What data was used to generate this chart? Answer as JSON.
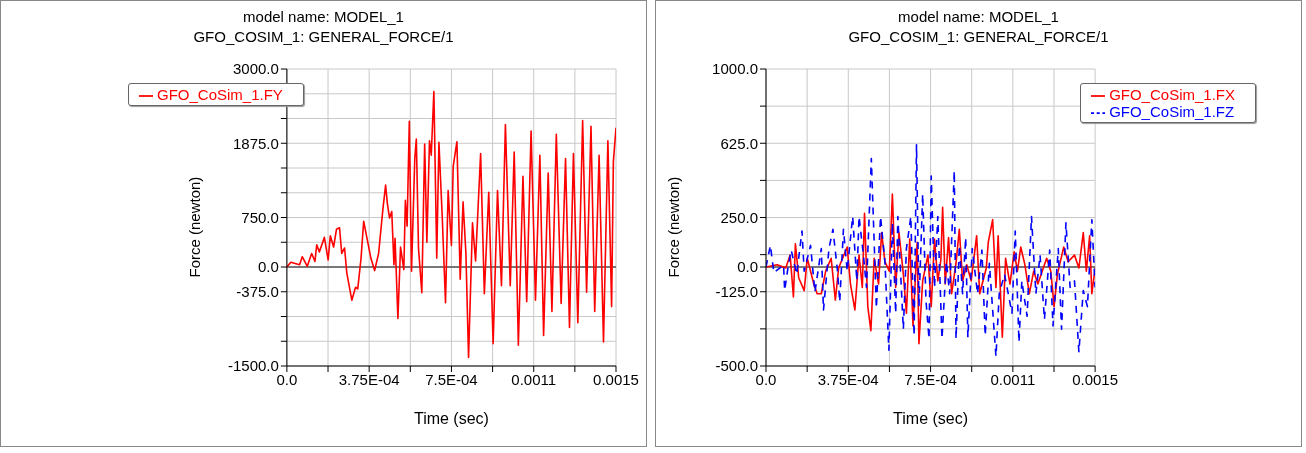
{
  "chart_data": [
    {
      "type": "line",
      "title": "model name: MODEL_1",
      "subtitle": "GFO_COSIM_1: GENERAL_FORCE/1",
      "xlabel": "Time (sec)",
      "ylabel": "Force (newton)",
      "xlim": [
        0,
        0.0015
      ],
      "xticks": [
        {
          "value": 0,
          "label": "0.0"
        },
        {
          "value": 0.0001875,
          "label": null
        },
        {
          "value": 0.000375,
          "label": "3.75E-04"
        },
        {
          "value": 0.0005625,
          "label": null
        },
        {
          "value": 0.00075,
          "label": "7.5E-04"
        },
        {
          "value": 0.0009375,
          "label": null
        },
        {
          "value": 0.001125,
          "label": "0.0011"
        },
        {
          "value": 0.0013125,
          "label": null
        },
        {
          "value": 0.0015,
          "label": "0.0015"
        }
      ],
      "ylim": [
        -1500,
        3000
      ],
      "yticks": [
        {
          "value": -1500,
          "label": "-1500.0"
        },
        {
          "value": -1125,
          "label": null
        },
        {
          "value": -750,
          "label": null
        },
        {
          "value": -375,
          "label": "-375.0"
        },
        {
          "value": 0,
          "label": "0.0"
        },
        {
          "value": 375,
          "label": null
        },
        {
          "value": 750,
          "label": "750.0"
        },
        {
          "value": 1125,
          "label": null
        },
        {
          "value": 1500,
          "label": null
        },
        {
          "value": 1875,
          "label": "1875.0"
        },
        {
          "value": 2250,
          "label": null
        },
        {
          "value": 2625,
          "label": null
        },
        {
          "value": 3000,
          "label": "3000.0"
        }
      ],
      "grid": true,
      "legend": "top left",
      "marker": "none",
      "ref_lines": [
        {
          "axis": "y",
          "value": 0,
          "color": "#555555"
        }
      ],
      "series": [
        {
          "name": "GFO_CoSim_1.FY",
          "color": "#ff0000",
          "line_style": "solid",
          "x": [
            0,
            1.8e-05,
            5.8e-05,
            7e-05,
            9.3e-05,
            0.000113,
            0.000128,
            0.000136,
            0.000148,
            0.000171,
            0.000188,
            0.000198,
            0.000213,
            0.000226,
            0.00024,
            0.00025,
            0.000263,
            0.000273,
            0.000296,
            0.000313,
            0.000323,
            0.000338,
            0.00035,
            0.000363,
            0.000383,
            0.0004,
            0.000418,
            0.000438,
            0.00045,
            0.000458,
            0.000468,
            0.000478,
            0.000488,
            0.000493,
            0.000506,
            0.000518,
            0.000533,
            0.00054,
            0.000548,
            0.000558,
            0.000568,
            0.000583,
            0.00059,
            0.0006,
            0.000615,
            0.000628,
            0.000638,
            0.00065,
            0.000658,
            0.00067,
            0.000683,
            0.000693,
            0.000708,
            0.000723,
            0.000735,
            0.00075,
            0.000758,
            0.000775,
            0.00079,
            0.000803,
            0.000816,
            0.000828,
            0.000846,
            0.00086,
            0.000883,
            0.0009,
            0.00092,
            0.00094,
            0.00096,
            0.000978,
            0.000996,
            0.001018,
            0.001036,
            0.001055,
            0.001076,
            0.001093,
            0.001113,
            0.001133,
            0.001153,
            0.00117,
            0.001191,
            0.001208,
            0.001228,
            0.00125,
            0.00127,
            0.001288,
            0.001306,
            0.001326,
            0.001348,
            0.001366,
            0.001386,
            0.001403,
            0.001423,
            0.001443,
            0.001463,
            0.00148,
            0.001488,
            0.0015
          ],
          "values": [
            0,
            73,
            34,
            156,
            10,
            205,
            83,
            337,
            229,
            449,
            107,
            473,
            303,
            571,
            595,
            205,
            288,
            -88,
            -503,
            -307,
            -332,
            132,
            693,
            473,
            132,
            -54,
            205,
            888,
            1240,
            961,
            742,
            839,
            34,
            434,
            -781,
            303,
            -39,
            1010,
            620,
            2206,
            -63,
            1645,
            1937,
            278,
            -390,
            1864,
            376,
            1913,
            1693,
            2660,
            132,
            1889,
            766,
            -542,
            1157,
            327,
            1523,
            1898,
            -185,
            986,
            205,
            -1371,
            669,
            93,
            1718,
            -405,
            1132,
            -1161,
            1157,
            -283,
            2157,
            -283,
            1742,
            -1186,
            1376,
            -527,
            2059,
            -503,
            1693,
            -1039,
            1425,
            -673,
            2011,
            -551,
            1645,
            -917,
            1718,
            -844,
            2220,
            -381,
            2133,
            -673,
            1693,
            -1137,
            1913,
            -600,
            1596,
            2108
          ]
        }
      ]
    },
    {
      "type": "line",
      "title": "model name: MODEL_1",
      "subtitle": "GFO_COSIM_1: GENERAL_FORCE/1",
      "xlabel": "Time (sec)",
      "ylabel": "Force (newton)",
      "xlim": [
        0,
        0.0015
      ],
      "xticks": [
        {
          "value": 0,
          "label": "0.0"
        },
        {
          "value": 0.0001875,
          "label": null
        },
        {
          "value": 0.000375,
          "label": "3.75E-04"
        },
        {
          "value": 0.0005625,
          "label": null
        },
        {
          "value": 0.00075,
          "label": "7.5E-04"
        },
        {
          "value": 0.0009375,
          "label": null
        },
        {
          "value": 0.001125,
          "label": "0.0011"
        },
        {
          "value": 0.0013125,
          "label": null
        },
        {
          "value": 0.0015,
          "label": "0.0015"
        }
      ],
      "ylim": [
        -500,
        1000
      ],
      "yticks": [
        {
          "value": -500,
          "label": "-500.0"
        },
        {
          "value": -312.5,
          "label": null
        },
        {
          "value": -125,
          "label": "-125.0"
        },
        {
          "value": 0,
          "label": "0.0"
        },
        {
          "value": 62.5,
          "label": null
        },
        {
          "value": 250,
          "label": "250.0"
        },
        {
          "value": 437.5,
          "label": null
        },
        {
          "value": 625,
          "label": "625.0"
        },
        {
          "value": 812.5,
          "label": null
        },
        {
          "value": 1000,
          "label": "1000.0"
        }
      ],
      "grid": true,
      "legend": "top right",
      "marker": "none",
      "ref_lines": [
        {
          "axis": "y",
          "value": 0,
          "color": "#555555"
        }
      ],
      "series": [
        {
          "name": "GFO_CoSim_1.FX",
          "color": "#ff0000",
          "line_style": "solid",
          "x": [
            0,
            5.1e-05,
            9e-05,
            0.00011,
            0.000125,
            0.000134,
            0.000149,
            0.000174,
            0.000188,
            0.000218,
            0.000233,
            0.000252,
            0.000272,
            0.000297,
            0.000316,
            0.000331,
            0.00037,
            0.000385,
            0.000405,
            0.000424,
            0.000439,
            0.000449,
            0.000464,
            0.000478,
            0.000493,
            0.000513,
            0.000527,
            0.000542,
            0.000562,
            0.000576,
            0.000591,
            0.000606,
            0.000626,
            0.00064,
            0.000655,
            0.00067,
            0.000689,
            0.000697,
            0.000714,
            0.000738,
            0.000753,
            0.000768,
            0.000783,
            0.000797,
            0.000805,
            0.000817,
            0.000832,
            0.000846,
            0.000866,
            0.000881,
            0.000896,
            0.000915,
            0.000935,
            0.00096,
            0.000974,
            0.001004,
            0.001013,
            0.001033,
            0.001048,
            0.001058,
            0.001077,
            0.001092,
            0.001112,
            0.001131,
            0.001146,
            0.001161,
            0.00118,
            0.0012,
            0.00122,
            0.001239,
            0.001259,
            0.001279,
            0.001298,
            0.001313,
            0.001328,
            0.001357,
            0.001377,
            0.001406,
            0.001426,
            0.001446,
            0.00146,
            0.001475,
            0.001485,
            0.0015
          ],
          "values": [
            0,
            11,
            -5,
            60,
            -151,
            117,
            -54,
            -119,
            44,
            -86,
            -135,
            -135,
            -21,
            44,
            -167,
            -5,
            101,
            -86,
            -217,
            60,
            -103,
            271,
            -200,
            -322,
            44,
            -86,
            174,
            27,
            -21,
            369,
            -103,
            174,
            -37,
            -233,
            141,
            -298,
            125,
            -387,
            -70,
            60,
            -200,
            141,
            -70,
            36,
            301,
            -86,
            149,
            -135,
            19,
            190,
            -70,
            11,
            -70,
            158,
            -135,
            -5,
            125,
            239,
            -103,
            158,
            -355,
            44,
            -86,
            77,
            -21,
            101,
            11,
            -135,
            -21,
            -86,
            -21,
            44,
            -21,
            -200,
            -37,
            101,
            27,
            60,
            -5,
            174,
            -21,
            158,
            -135,
            -5
          ]
        },
        {
          "name": "GFO_CoSim_1.FZ",
          "color": "#0000ff",
          "line_style": "dashed",
          "x": [
            0,
            2e-05,
            3.6e-05,
            8e-05,
            8.5e-05,
            0.0001,
            0.000115,
            0.00014,
            0.000164,
            0.000174,
            0.000203,
            0.000223,
            0.000252,
            0.000262,
            0.000287,
            0.000305,
            0.000326,
            0.000336,
            0.000353,
            0.00037,
            0.000395,
            0.000414,
            0.000424,
            0.000444,
            0.000458,
            0.00048,
            0.000493,
            0.000503,
            0.000522,
            0.000542,
            0.00056,
            0.000576,
            0.000591,
            0.000601,
            0.000626,
            0.00064,
            0.00066,
            0.000675,
            0.000686,
            0.000697,
            0.000714,
            0.000729,
            0.000743,
            0.000753,
            0.000768,
            0.000783,
            0.000802,
            0.000822,
            0.000837,
            0.000858,
            0.000866,
            0.000881,
            0.000896,
            0.00091,
            0.00092,
            0.00094,
            0.000964,
            0.000984,
            0.000999,
            0.001018,
            0.001048,
            0.001063,
            0.001087,
            0.001121,
            0.001136,
            0.001153,
            0.001166,
            0.00119,
            0.00121,
            0.00123,
            0.001249,
            0.001269,
            0.001293,
            0.001308,
            0.001332,
            0.001347,
            0.001367,
            0.001386,
            0.001406,
            0.001426,
            0.001446,
            0.001465,
            0.001485,
            0.0015
          ],
          "values": [
            0,
            109,
            -29,
            11,
            -119,
            -5,
            85,
            -37,
            182,
            -21,
            109,
            -127,
            93,
            -217,
            93,
            190,
            -21,
            -176,
            190,
            -21,
            255,
            -70,
            255,
            60,
            -103,
            548,
            125,
            -208,
            255,
            27,
            -420,
            223,
            -233,
            255,
            -314,
            93,
            255,
            -347,
            617,
            -200,
            369,
            -167,
            -363,
            459,
            -103,
            255,
            -363,
            27,
            -135,
            487,
            -363,
            109,
            -135,
            149,
            -355,
            93,
            -135,
            85,
            -347,
            19,
            -452,
            -135,
            -37,
            -233,
            182,
            -379,
            -70,
            -249,
            255,
            -135,
            60,
            -265,
            85,
            -298,
            93,
            -314,
            223,
            -103,
            -70,
            -428,
            -119,
            -200,
            239,
            -103
          ]
        }
      ]
    }
  ]
}
